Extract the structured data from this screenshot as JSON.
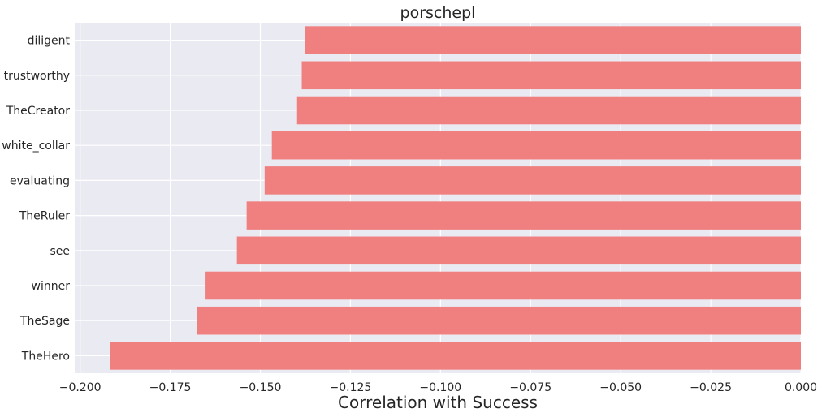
{
  "chart_data": {
    "type": "bar",
    "orientation": "horizontal",
    "title": "porschepl",
    "xlabel": "Correlation with Success",
    "ylabel": "",
    "categories": [
      "diligent",
      "trustworthy",
      "TheCreator",
      "white_collar",
      "evaluating",
      "TheRuler",
      "see",
      "winner",
      "TheSage",
      "TheHero"
    ],
    "values": [
      -0.1375,
      -0.1385,
      -0.1398,
      -0.1468,
      -0.1488,
      -0.1538,
      -0.1565,
      -0.1652,
      -0.1675,
      -0.1918
    ],
    "xlim": [
      -0.2015,
      0.0
    ],
    "xticks": [
      -0.2,
      -0.175,
      -0.15,
      -0.125,
      -0.1,
      -0.075,
      -0.05,
      -0.025,
      0.0
    ],
    "xtick_labels": [
      "−0.200",
      "−0.175",
      "−0.150",
      "−0.125",
      "−0.100",
      "−0.075",
      "−0.050",
      "−0.025",
      "0.000"
    ],
    "grid": true,
    "bar_color": "#f08080",
    "background_color": "#eaeaf2",
    "grid_color": "#ffffff"
  }
}
